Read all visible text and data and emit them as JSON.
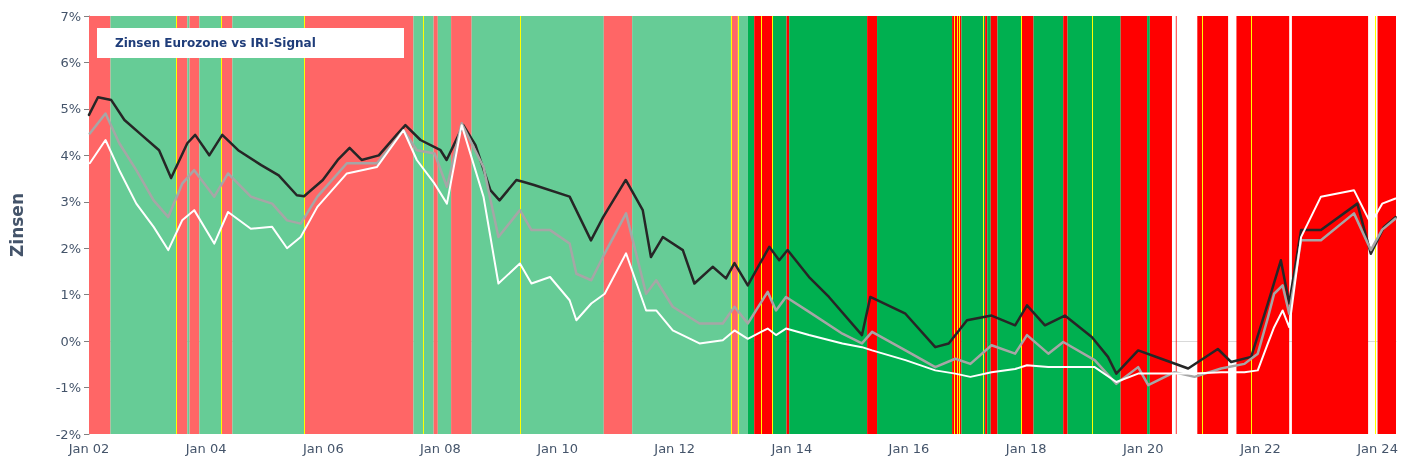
{
  "chart_data": {
    "type": "line",
    "title": "Zinsen Eurozone vs IRI-Signal",
    "ylabel": "Zinsen",
    "xlim": [
      "2002-01-01",
      "2024-04-25"
    ],
    "xticks": [
      {
        "value": "2002-01-01",
        "label": "Jan 02"
      },
      {
        "value": "2004-01-01",
        "label": "Jan 04"
      },
      {
        "value": "2006-01-01",
        "label": "Jan 06"
      },
      {
        "value": "2008-01-01",
        "label": "Jan 08"
      },
      {
        "value": "2010-01-01",
        "label": "Jan 10"
      },
      {
        "value": "2012-01-01",
        "label": "Jan 12"
      },
      {
        "value": "2014-01-01",
        "label": "Jan 14"
      },
      {
        "value": "2016-01-01",
        "label": "Jan 16"
      },
      {
        "value": "2018-01-01",
        "label": "Jan 18"
      },
      {
        "value": "2020-01-01",
        "label": "Jan 20"
      },
      {
        "value": "2022-01-01",
        "label": "Jan 22"
      },
      {
        "value": "2024-01-01",
        "label": "Jan 24"
      }
    ],
    "ylim": [
      -2,
      7
    ],
    "yticks": [
      {
        "value": -2,
        "label": "-2%"
      },
      {
        "value": -1,
        "label": "-1%"
      },
      {
        "value": 0,
        "label": "0%"
      },
      {
        "value": 1,
        "label": "1%"
      },
      {
        "value": 2,
        "label": "2%"
      },
      {
        "value": 3,
        "label": "3%"
      },
      {
        "value": 4,
        "label": "4%"
      },
      {
        "value": 5,
        "label": "5%"
      },
      {
        "value": 6,
        "label": "6%"
      },
      {
        "value": 7,
        "label": "7%"
      }
    ],
    "grid": false,
    "marker": "none",
    "line_style": "solid",
    "series": [
      {
        "color": "#262626",
        "x": [
          "2002-01-01",
          "2002-02-26",
          "2002-05-20",
          "2002-08-10",
          "2002-11-24",
          "2003-03-14",
          "2003-05-28",
          "2003-09-06",
          "2003-10-25",
          "2004-01-21",
          "2004-04-11",
          "2004-07-19",
          "2004-12-10",
          "2005-03-29",
          "2005-07-20",
          "2005-09-03",
          "2005-12-29",
          "2006-04-01",
          "2006-06-14",
          "2006-08-28",
          "2006-12-13",
          "2007-04-03",
          "2007-05-28",
          "2007-08-30",
          "2008-01-02",
          "2008-02-09",
          "2008-05-23",
          "2008-08-07",
          "2008-11-08",
          "2009-01-04",
          "2009-04-19",
          "2009-05-30",
          "2009-08-07",
          "2010-03-17",
          "2010-07-28",
          "2010-10-12",
          "2011-03-02",
          "2011-06-16",
          "2011-08-06",
          "2011-10-19",
          "2012-02-21",
          "2012-05-03",
          "2012-08-25",
          "2012-11-16",
          "2013-01-08",
          "2013-04-01",
          "2013-08-13",
          "2013-10-14",
          "2013-12-05",
          "2014-04-18",
          "2014-08-20",
          "2015-03-14",
          "2015-05-05",
          "2015-12-10",
          "2016-06-13",
          "2016-09-05",
          "2016-12-28",
          "2017-05-30",
          "2017-10-24",
          "2018-01-06",
          "2018-04-28",
          "2018-08-30",
          "2019-02-14",
          "2019-05-26",
          "2019-07-17",
          "2019-11-30",
          "2020-04-22",
          "2020-10-07",
          "2021-04-10",
          "2021-07-02",
          "2021-11-04",
          "2022-02-16",
          "2022-05-08",
          "2022-06-29",
          "2022-09-11",
          "2023-01-13",
          "2023-08-28",
          "2023-11-20",
          "2024-02-10",
          "2024-04-22"
        ],
        "values": [
          4.87,
          5.25,
          5.19,
          4.76,
          4.44,
          4.11,
          3.51,
          4.26,
          4.44,
          4.0,
          4.44,
          4.11,
          3.79,
          3.57,
          3.14,
          3.12,
          3.47,
          3.9,
          4.16,
          3.9,
          4.0,
          4.44,
          4.65,
          4.33,
          4.11,
          3.9,
          4.65,
          4.22,
          3.25,
          3.03,
          3.47,
          3.43,
          3.36,
          3.11,
          2.17,
          2.67,
          3.47,
          2.82,
          1.81,
          2.24,
          1.96,
          1.24,
          1.6,
          1.35,
          1.68,
          1.2,
          2.03,
          1.74,
          1.96,
          1.38,
          0.95,
          0.13,
          0.95,
          0.59,
          -0.13,
          -0.05,
          0.45,
          0.55,
          0.34,
          0.77,
          0.34,
          0.55,
          0.09,
          -0.34,
          -0.7,
          -0.2,
          -0.38,
          -0.59,
          -0.17,
          -0.45,
          -0.34,
          0.81,
          1.74,
          0.81,
          2.39,
          2.39,
          2.96,
          1.88,
          2.46,
          2.67
        ]
      },
      {
        "color": "#a6a6a6",
        "x": [
          "2002-01-06",
          "2002-04-14",
          "2002-07-09",
          "2002-10-23",
          "2003-02-08",
          "2003-05-10",
          "2003-08-05",
          "2003-10-19",
          "2004-02-21",
          "2004-05-17",
          "2004-10-06",
          "2005-02-16",
          "2005-05-20",
          "2005-08-13",
          "2005-11-25",
          "2006-05-28",
          "2006-12-02",
          "2007-05-16",
          "2007-08-07",
          "2007-11-26",
          "2008-02-11",
          "2008-05-13",
          "2008-09-26",
          "2008-12-28",
          "2009-05-11",
          "2009-07-22",
          "2009-11-15",
          "2010-03-17",
          "2010-04-28",
          "2010-07-30",
          "2010-10-22",
          "2011-03-04",
          "2011-07-07",
          "2011-09-08",
          "2011-12-20",
          "2012-06-04",
          "2012-10-27",
          "2013-01-08",
          "2013-04-01",
          "2013-08-03",
          "2013-09-24",
          "2013-11-25",
          "2014-04-18",
          "2014-11-12",
          "2015-03-14",
          "2015-05-16",
          "2015-12-10",
          "2016-06-13",
          "2016-10-16",
          "2017-01-18",
          "2017-05-30",
          "2017-10-24",
          "2018-01-06",
          "2018-05-19",
          "2018-08-20",
          "2019-03-04",
          "2019-07-17",
          "2019-11-30",
          "2020-02-01",
          "2020-07-14",
          "2020-11-16",
          "2021-04-30",
          "2021-09-23",
          "2021-12-15",
          "2022-02-16",
          "2022-03-27",
          "2022-05-19",
          "2022-06-29",
          "2022-09-11",
          "2023-01-13",
          "2023-08-07",
          "2023-11-20",
          "2024-01-30",
          "2024-04-22"
        ],
        "values": [
          4.47,
          4.9,
          4.26,
          3.68,
          3.03,
          2.67,
          3.39,
          3.68,
          3.11,
          3.61,
          3.11,
          2.96,
          2.6,
          2.53,
          3.11,
          3.83,
          3.83,
          4.54,
          4.11,
          4.04,
          3.32,
          4.69,
          3.75,
          2.24,
          2.82,
          2.39,
          2.39,
          2.1,
          1.45,
          1.31,
          1.89,
          2.75,
          1.02,
          1.31,
          0.74,
          0.38,
          0.38,
          0.74,
          0.38,
          1.06,
          0.66,
          0.95,
          0.63,
          0.16,
          -0.05,
          0.2,
          -0.2,
          -0.56,
          -0.38,
          -0.49,
          -0.09,
          -0.27,
          0.13,
          -0.27,
          -0.02,
          -0.41,
          -0.92,
          -0.56,
          -0.95,
          -0.67,
          -0.77,
          -0.59,
          -0.49,
          -0.27,
          0.5,
          1.02,
          1.2,
          0.59,
          2.17,
          2.17,
          2.75,
          1.96,
          2.4,
          2.64
        ]
      },
      {
        "color": "#ffffff",
        "x": [
          "2002-01-06",
          "2002-04-14",
          "2002-07-09",
          "2002-10-23",
          "2003-02-08",
          "2003-05-10",
          "2003-08-05",
          "2003-10-19",
          "2004-02-21",
          "2004-05-17",
          "2004-10-06",
          "2005-02-16",
          "2005-05-20",
          "2005-08-13",
          "2005-11-25",
          "2006-05-28",
          "2006-12-02",
          "2007-05-16",
          "2007-08-07",
          "2007-11-26",
          "2008-02-11",
          "2008-05-13",
          "2008-09-26",
          "2008-12-28",
          "2009-05-11",
          "2009-07-22",
          "2009-11-15",
          "2010-03-17",
          "2010-04-28",
          "2010-07-30",
          "2010-10-22",
          "2011-03-04",
          "2011-07-07",
          "2011-09-08",
          "2011-12-20",
          "2012-06-04",
          "2012-10-27",
          "2013-01-08",
          "2013-04-01",
          "2013-08-03",
          "2013-09-24",
          "2013-11-25",
          "2014-04-18",
          "2014-11-12",
          "2015-03-14",
          "2015-05-16",
          "2015-12-10",
          "2016-06-13",
          "2016-10-16",
          "2017-01-18",
          "2017-05-30",
          "2017-10-24",
          "2018-01-06",
          "2018-05-19",
          "2018-08-20",
          "2019-03-04",
          "2019-07-17",
          "2019-11-30",
          "2020-02-01",
          "2020-07-14",
          "2020-11-16",
          "2021-04-30",
          "2021-09-23",
          "2021-12-15",
          "2022-02-16",
          "2022-03-27",
          "2022-05-19",
          "2022-06-29",
          "2022-09-11",
          "2023-01-13",
          "2023-08-07",
          "2023-11-20",
          "2024-01-30",
          "2024-04-22"
        ],
        "values": [
          3.83,
          4.33,
          3.68,
          2.96,
          2.46,
          1.96,
          2.6,
          2.82,
          2.1,
          2.78,
          2.42,
          2.46,
          2.0,
          2.24,
          2.89,
          3.61,
          3.75,
          4.54,
          3.9,
          3.39,
          2.96,
          4.65,
          3.11,
          1.24,
          1.67,
          1.24,
          1.38,
          0.88,
          0.45,
          0.81,
          1.02,
          1.89,
          0.66,
          0.66,
          0.23,
          -0.05,
          0.02,
          0.23,
          0.05,
          0.27,
          0.13,
          0.27,
          0.13,
          -0.05,
          -0.13,
          -0.2,
          -0.41,
          -0.63,
          -0.7,
          -0.77,
          -0.67,
          -0.6,
          -0.52,
          -0.56,
          -0.56,
          -0.56,
          -0.88,
          -0.7,
          -0.7,
          -0.7,
          -0.7,
          -0.67,
          -0.67,
          -0.63,
          -0.05,
          0.3,
          0.66,
          0.3,
          2.24,
          3.11,
          3.25,
          2.53,
          2.96,
          3.07
        ]
      }
    ],
    "bands": [
      {
        "axis": "x",
        "from": "2002-01-01",
        "to": "2002-05-15",
        "color": "#ff6666"
      },
      {
        "axis": "x",
        "from": "2002-05-15",
        "to": "2003-07-02",
        "color": "#66cc96"
      },
      {
        "axis": "x",
        "from": "2003-07-02",
        "to": "2003-09-06",
        "color": "#ff6666"
      },
      {
        "axis": "x",
        "from": "2003-09-06",
        "to": "2003-09-20",
        "color": "#66cc96"
      },
      {
        "axis": "x",
        "from": "2003-09-20",
        "to": "2003-11-20",
        "color": "#ff6666"
      },
      {
        "axis": "x",
        "from": "2003-11-20",
        "to": "2004-04-06",
        "color": "#66cc96"
      },
      {
        "axis": "x",
        "from": "2004-04-06",
        "to": "2004-06-13",
        "color": "#ff6666"
      },
      {
        "axis": "x",
        "from": "2004-06-13",
        "to": "2005-09-07",
        "color": "#66cc96"
      },
      {
        "axis": "x",
        "from": "2005-09-07",
        "to": "2007-07-17",
        "color": "#ff6666"
      },
      {
        "axis": "x",
        "from": "2007-07-17",
        "to": "2007-11-20",
        "color": "#66cc96"
      },
      {
        "axis": "x",
        "from": "2007-11-20",
        "to": "2007-12-16",
        "color": "#ff6666"
      },
      {
        "axis": "x",
        "from": "2007-12-16",
        "to": "2008-03-08",
        "color": "#66cc96"
      },
      {
        "axis": "x",
        "from": "2008-03-08",
        "to": "2008-07-14",
        "color": "#ff6666"
      },
      {
        "axis": "x",
        "from": "2008-07-14",
        "to": "2010-10-16",
        "color": "#66cc96"
      },
      {
        "axis": "x",
        "from": "2010-10-16",
        "to": "2011-04-11",
        "color": "#ff6666"
      },
      {
        "axis": "x",
        "from": "2011-04-11",
        "to": "2012-12-17",
        "color": "#66cc96"
      },
      {
        "axis": "x",
        "from": "2012-12-17",
        "to": "2013-01-29",
        "color": "#ff6666"
      },
      {
        "axis": "x",
        "from": "2013-01-29",
        "to": "2013-04-01",
        "color": "#66cc96"
      },
      {
        "axis": "x",
        "from": "2013-04-01",
        "to": "2013-05-11",
        "color": "#00b050"
      },
      {
        "axis": "x",
        "from": "2013-05-11",
        "to": "2013-09-03",
        "color": "#ff0000"
      },
      {
        "axis": "x",
        "from": "2013-09-03",
        "to": "2013-11-29",
        "color": "#00b050"
      },
      {
        "axis": "x",
        "from": "2013-11-29",
        "to": "2013-12-15",
        "color": "#ff0000"
      },
      {
        "axis": "x",
        "from": "2013-12-15",
        "to": "2015-04-15",
        "color": "#00b050"
      },
      {
        "axis": "x",
        "from": "2015-04-15",
        "to": "2015-06-16",
        "color": "#ff0000"
      },
      {
        "axis": "x",
        "from": "2015-06-16",
        "to": "2016-09-26",
        "color": "#00b050"
      },
      {
        "axis": "x",
        "from": "2016-09-26",
        "to": "2016-11-23",
        "color": "#ff0000"
      },
      {
        "axis": "x",
        "from": "2016-11-23",
        "to": "2017-04-20",
        "color": "#00b050"
      },
      {
        "axis": "x",
        "from": "2017-04-20",
        "to": "2017-05-03",
        "color": "#ff0000"
      },
      {
        "axis": "x",
        "from": "2017-05-03",
        "to": "2017-05-25",
        "color": "#00b050"
      },
      {
        "axis": "x",
        "from": "2017-05-25",
        "to": "2017-07-06",
        "color": "#ff0000"
      },
      {
        "axis": "x",
        "from": "2017-07-06",
        "to": "2017-12-01",
        "color": "#00b050"
      },
      {
        "axis": "x",
        "from": "2017-12-01",
        "to": "2018-02-16",
        "color": "#ff0000"
      },
      {
        "axis": "x",
        "from": "2018-02-16",
        "to": "2018-08-20",
        "color": "#00b050"
      },
      {
        "axis": "x",
        "from": "2018-08-20",
        "to": "2018-09-16",
        "color": "#ff0000"
      },
      {
        "axis": "x",
        "from": "2018-09-16",
        "to": "2019-08-13",
        "color": "#00b050"
      },
      {
        "axis": "x",
        "from": "2019-08-13",
        "to": "2020-01-25",
        "color": "#ff0000"
      },
      {
        "axis": "x",
        "from": "2020-01-25",
        "to": "2020-02-11",
        "color": "#00b050"
      },
      {
        "axis": "x",
        "from": "2020-02-11",
        "to": "2020-06-28",
        "color": "#ff0000"
      },
      {
        "axis": "x",
        "from": "2020-07-22",
        "to": "2020-07-27",
        "color": "#ff0000"
      },
      {
        "axis": "x",
        "from": "2020-12-03",
        "to": "2021-06-13",
        "color": "#ff0000"
      },
      {
        "axis": "x",
        "from": "2021-08-04",
        "to": "2022-06-29",
        "color": "#ff0000"
      },
      {
        "axis": "x",
        "from": "2022-07-16",
        "to": "2023-11-03",
        "color": "#ff0000"
      },
      {
        "axis": "x",
        "from": "2024-01-01",
        "to": "2024-04-25",
        "color": "#ff0000"
      }
    ],
    "ref_lines": [
      {
        "axis": "x",
        "value": "2003-07-02",
        "color": "#ffff00"
      },
      {
        "axis": "x",
        "value": "2004-04-06",
        "color": "#ffff00"
      },
      {
        "axis": "x",
        "value": "2005-09-07",
        "color": "#ffff00"
      },
      {
        "axis": "x",
        "value": "2007-09-19",
        "color": "#ffff00"
      },
      {
        "axis": "x",
        "value": "2009-05-15",
        "color": "#ffff00"
      },
      {
        "axis": "x",
        "value": "2012-12-17",
        "color": "#ffff00"
      },
      {
        "axis": "x",
        "value": "2013-01-29",
        "color": "#ffff00"
      },
      {
        "axis": "x",
        "value": "2013-06-22",
        "color": "#ffff00"
      },
      {
        "axis": "x",
        "value": "2013-09-03",
        "color": "#ffff00"
      },
      {
        "axis": "x",
        "value": "2016-10-08",
        "color": "#ffff00"
      },
      {
        "axis": "x",
        "value": "2016-10-27",
        "color": "#ffff00"
      },
      {
        "axis": "x",
        "value": "2016-11-11",
        "color": "#ffff00"
      },
      {
        "axis": "x",
        "value": "2017-04-10",
        "color": "#ffff00"
      },
      {
        "axis": "x",
        "value": "2017-12-01",
        "color": "#ffff00"
      },
      {
        "axis": "x",
        "value": "2019-02-14",
        "color": "#ffff00"
      },
      {
        "axis": "x",
        "value": "2021-01-01",
        "color": "#ffff00"
      },
      {
        "axis": "x",
        "value": "2021-11-07",
        "color": "#ffff00"
      },
      {
        "axis": "x",
        "value": "2023-12-16",
        "color": "#ffff00"
      }
    ]
  }
}
